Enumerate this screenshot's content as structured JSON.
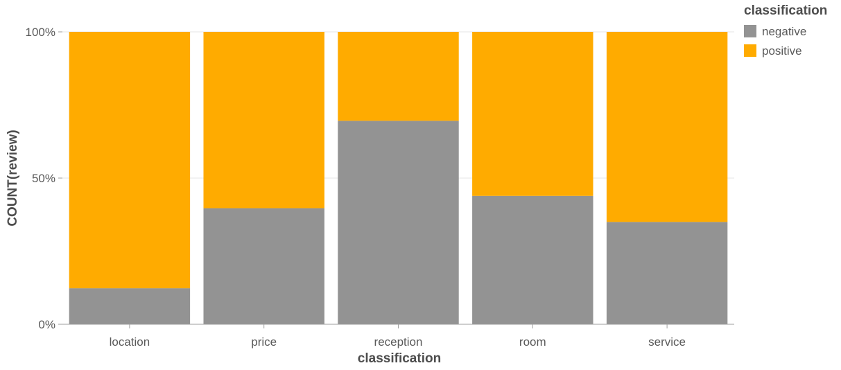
{
  "chart_data": {
    "type": "bar",
    "stacked": true,
    "normalized": true,
    "categories": [
      "location",
      "price",
      "reception",
      "room",
      "service"
    ],
    "series": [
      {
        "name": "negative",
        "color": "#939393",
        "values": [
          12.3,
          39.7,
          69.6,
          43.9,
          35.0
        ]
      },
      {
        "name": "positive",
        "color": "#ffab00",
        "values": [
          87.7,
          60.3,
          30.4,
          56.1,
          65.0
        ]
      }
    ],
    "xlabel": "classification",
    "ylabel": "COUNT(review)",
    "ylim": [
      0,
      100
    ],
    "yticks": [
      {
        "value": 0,
        "label": "0%"
      },
      {
        "value": 50,
        "label": "50%"
      },
      {
        "value": 100,
        "label": "100%"
      }
    ],
    "grid": true,
    "legend": {
      "title": "classification",
      "position": "top-right"
    }
  }
}
